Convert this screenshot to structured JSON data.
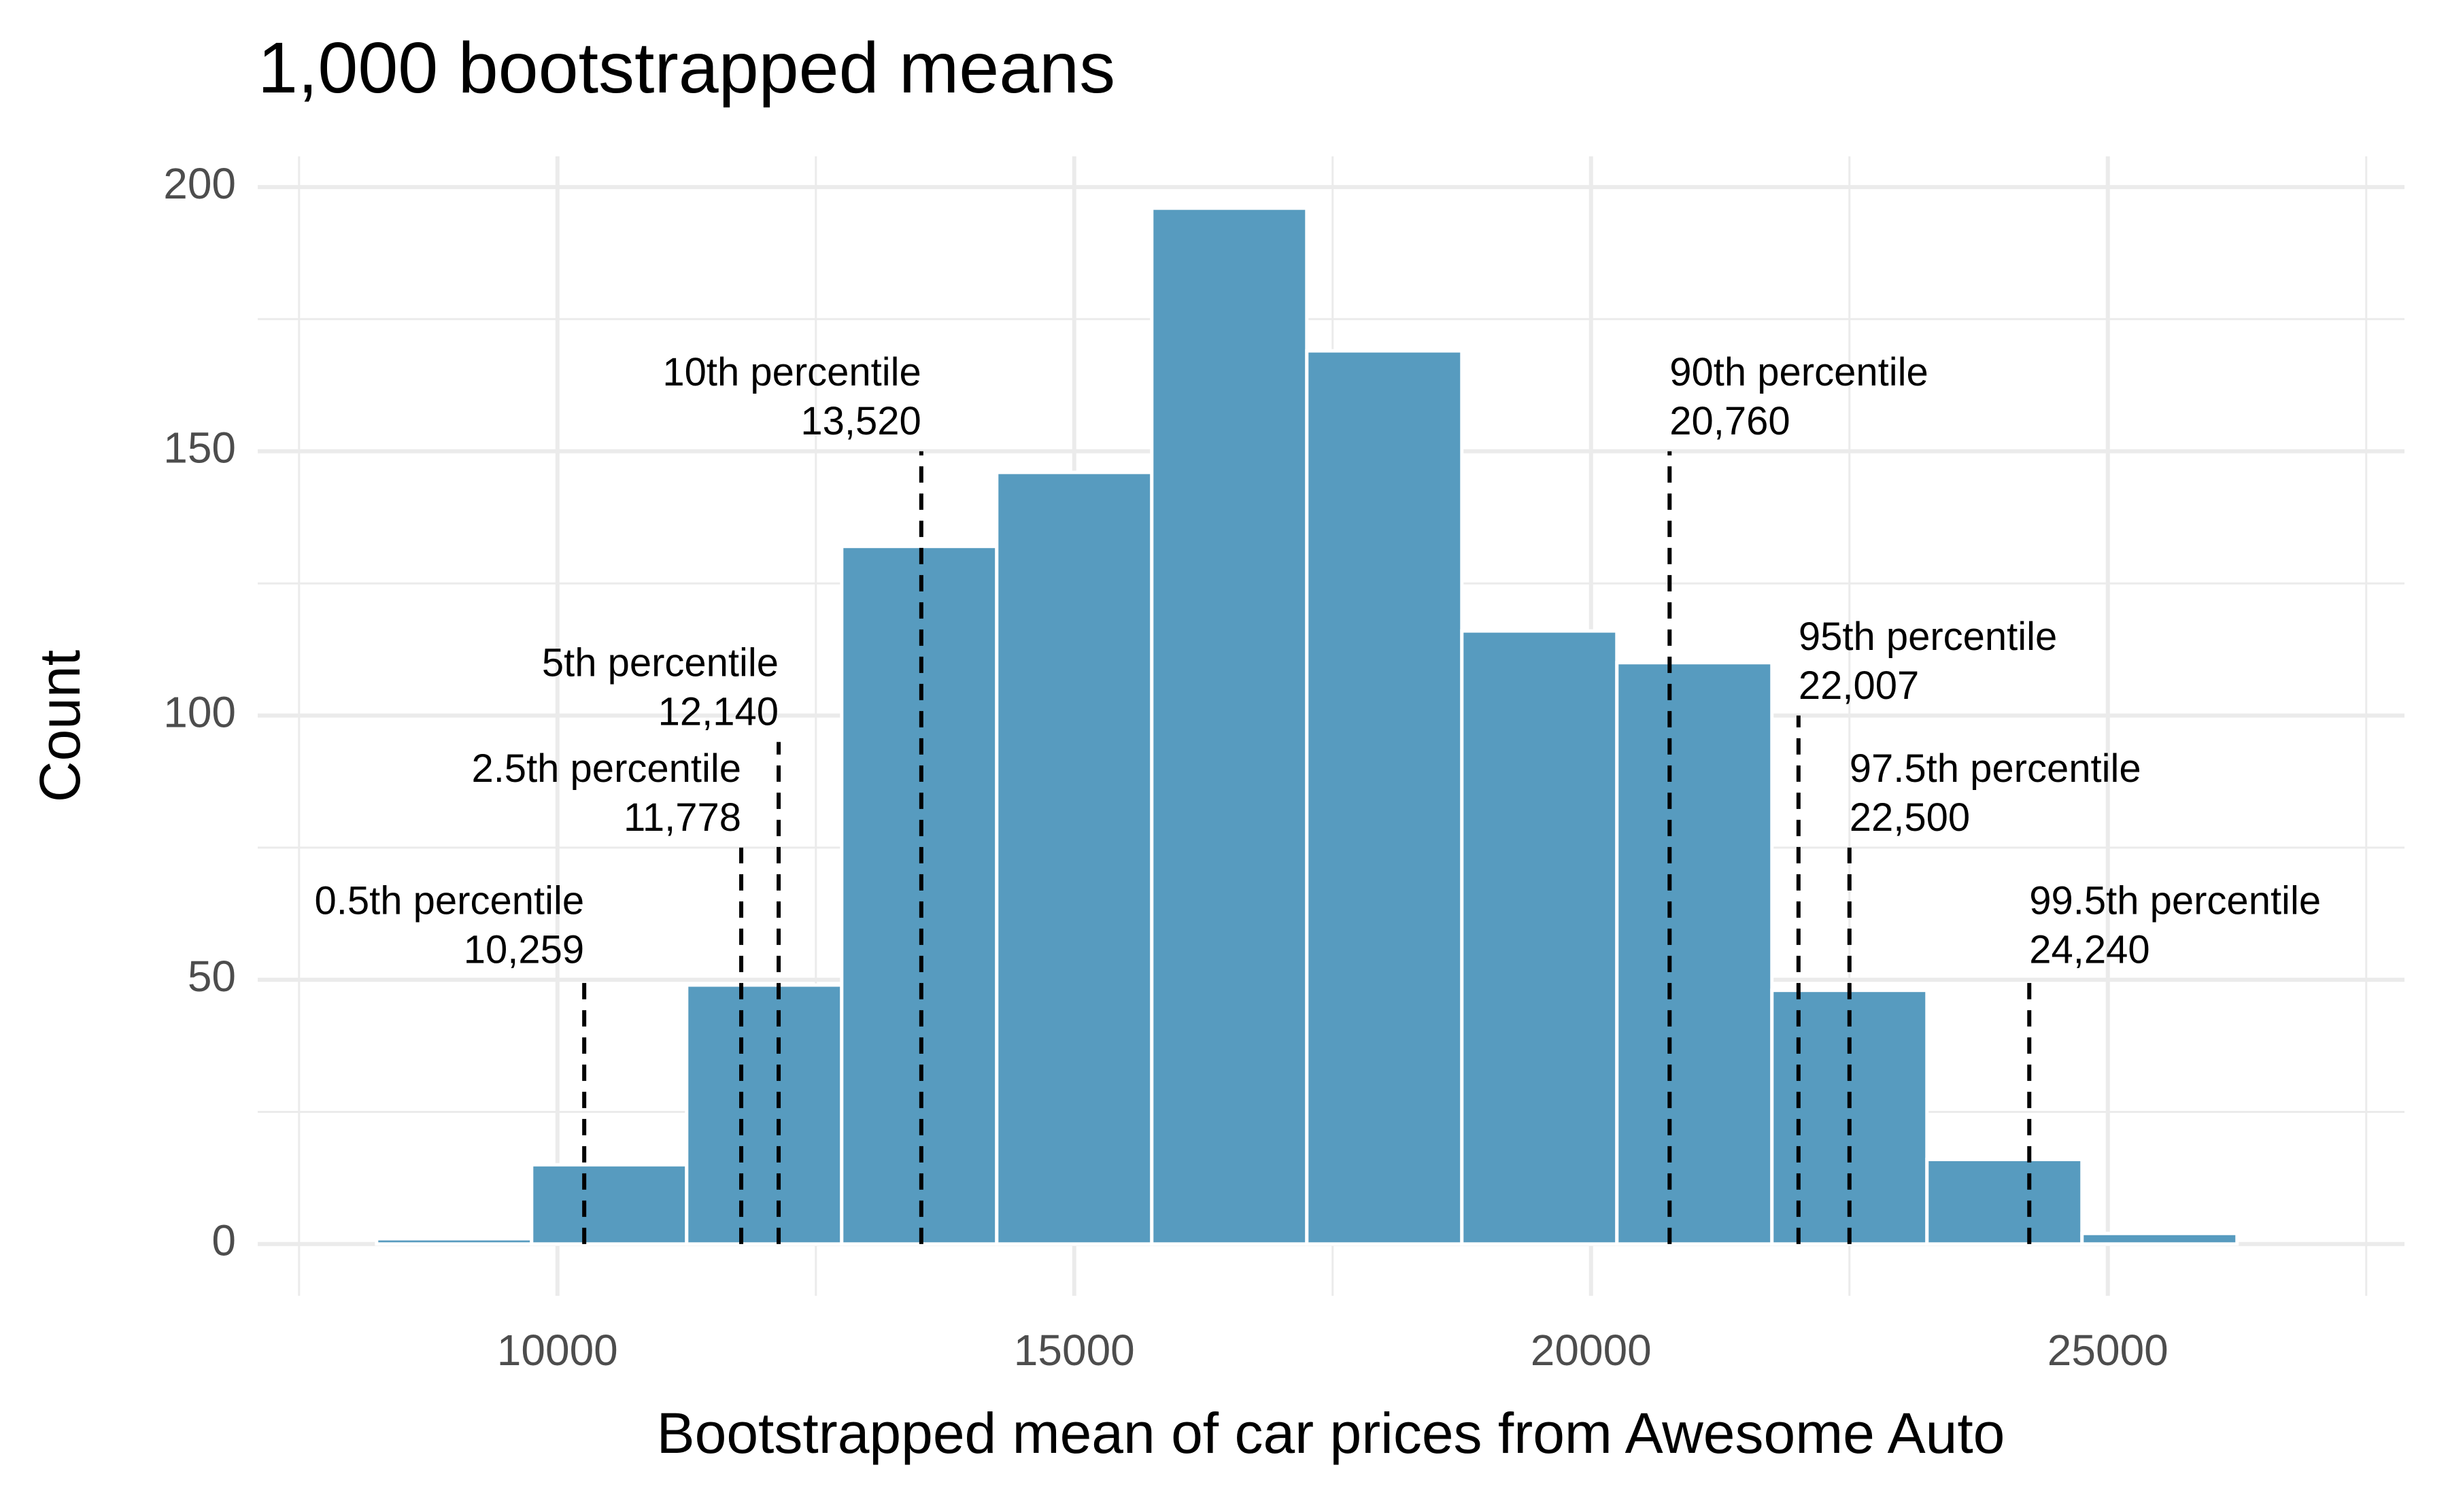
{
  "chart_data": {
    "type": "histogram",
    "title": "1,000 bootstrapped means",
    "x_label": "Bootstrapped mean of car prices from Awesome Auto",
    "y_label": "Count",
    "bins": [
      8250,
      9750,
      11250,
      12750,
      14250,
      15750,
      17250,
      18750,
      20250,
      21750,
      23250,
      24750,
      26250
    ],
    "counts": [
      1,
      15,
      49,
      132,
      146,
      196,
      169,
      116,
      110,
      48,
      16,
      2
    ],
    "color": "#579bbf",
    "xlim": [
      7100,
      27870
    ],
    "xticks": [
      10000,
      15000,
      20000,
      25000
    ],
    "xminor": [
      7500,
      12500,
      17500,
      22500,
      27500
    ],
    "ylim": [
      -9.8,
      205.8
    ],
    "yticks": [
      0,
      50,
      100,
      150,
      200
    ],
    "yminor": [
      25,
      75,
      125,
      175
    ],
    "grid": true,
    "annotations": [
      {
        "text": "0.5th percentile",
        "x": 10259,
        "x_label": "10,259",
        "top": 50,
        "align": "right"
      },
      {
        "text": "2.5th percentile",
        "x": 11778,
        "x_label": "11,778",
        "top": 75,
        "align": "right"
      },
      {
        "text": "5th percentile",
        "x": 12140,
        "x_label": "12,140",
        "top": 95,
        "align": "right"
      },
      {
        "text": "10th percentile",
        "x": 13520,
        "x_label": "13,520",
        "top": 150,
        "align": "right"
      },
      {
        "text": "90th percentile",
        "x": 20760,
        "x_label": "20,760",
        "top": 150,
        "align": "left"
      },
      {
        "text": "95th percentile",
        "x": 22007,
        "x_label": "22,007",
        "top": 100,
        "align": "left"
      },
      {
        "text": "97.5th percentile",
        "x": 22500,
        "x_label": "22,500",
        "top": 75,
        "align": "left"
      },
      {
        "text": "99.5th percentile",
        "x": 24240,
        "x_label": "24,240",
        "top": 50,
        "align": "left"
      }
    ]
  }
}
